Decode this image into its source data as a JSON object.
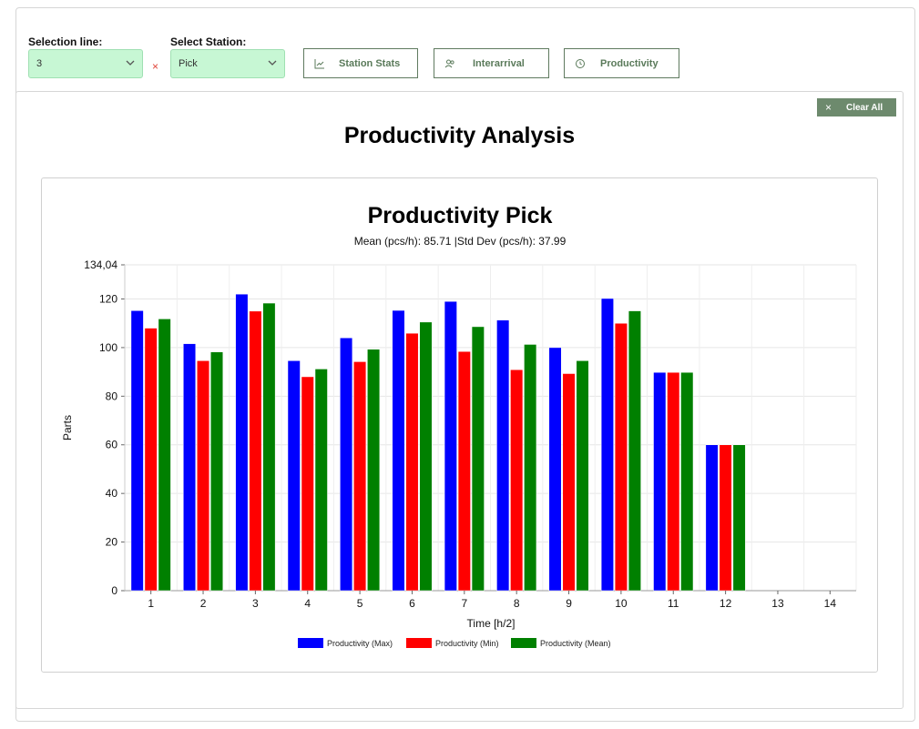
{
  "controls": {
    "selection_line": {
      "label": "Selection line:",
      "value": "3",
      "clear": "×"
    },
    "select_station": {
      "label": "Select Station:",
      "value": "Pick"
    },
    "buttons": [
      {
        "label": "Station Stats",
        "icon": "chart-line-icon"
      },
      {
        "label": "Interarrival",
        "icon": "users-icon"
      },
      {
        "label": "Productivity",
        "icon": "clock-icon"
      }
    ]
  },
  "panel": {
    "clear_all": "Clear All",
    "clear_icon": "×",
    "title": "Productivity Analysis"
  },
  "colors": {
    "max": "#0000ff",
    "min": "#ff0000",
    "mean": "#008000",
    "button_green": "#6d8a6d",
    "select_bg": "#c7f7d4"
  },
  "chart_data": {
    "type": "bar",
    "title": "Productivity Pick",
    "subtitle": "Mean (pcs/h): 85.71 |Std Dev (pcs/h): 37.99",
    "xlabel": "Time [h/2]",
    "ylabel": "Parts",
    "ylim": [
      0,
      134.04
    ],
    "ytick_top_label": "134,04",
    "yticks": [
      0,
      20,
      40,
      60,
      80,
      100,
      120
    ],
    "categories": [
      "1",
      "2",
      "3",
      "4",
      "5",
      "6",
      "7",
      "8",
      "9",
      "10",
      "11",
      "12",
      "13",
      "14"
    ],
    "series": [
      {
        "name": "Productivity (Max)",
        "color": "#0000ff",
        "values": [
          115.2,
          101.6,
          122.0,
          94.6,
          104.0,
          115.3,
          119.0,
          111.3,
          100.0,
          120.2,
          89.8,
          60.0,
          0,
          0
        ]
      },
      {
        "name": "Productivity (Min)",
        "color": "#ff0000",
        "values": [
          108.0,
          94.6,
          115.0,
          88.0,
          94.2,
          105.9,
          98.4,
          90.9,
          89.3,
          110.0,
          89.8,
          60.0,
          0,
          0
        ]
      },
      {
        "name": "Productivity (Mean)",
        "color": "#008000",
        "values": [
          111.8,
          98.2,
          118.3,
          91.2,
          99.3,
          110.5,
          108.6,
          101.3,
          94.6,
          115.1,
          89.8,
          60.0,
          0,
          0
        ]
      }
    ],
    "grid": true,
    "legend": "bottom"
  }
}
